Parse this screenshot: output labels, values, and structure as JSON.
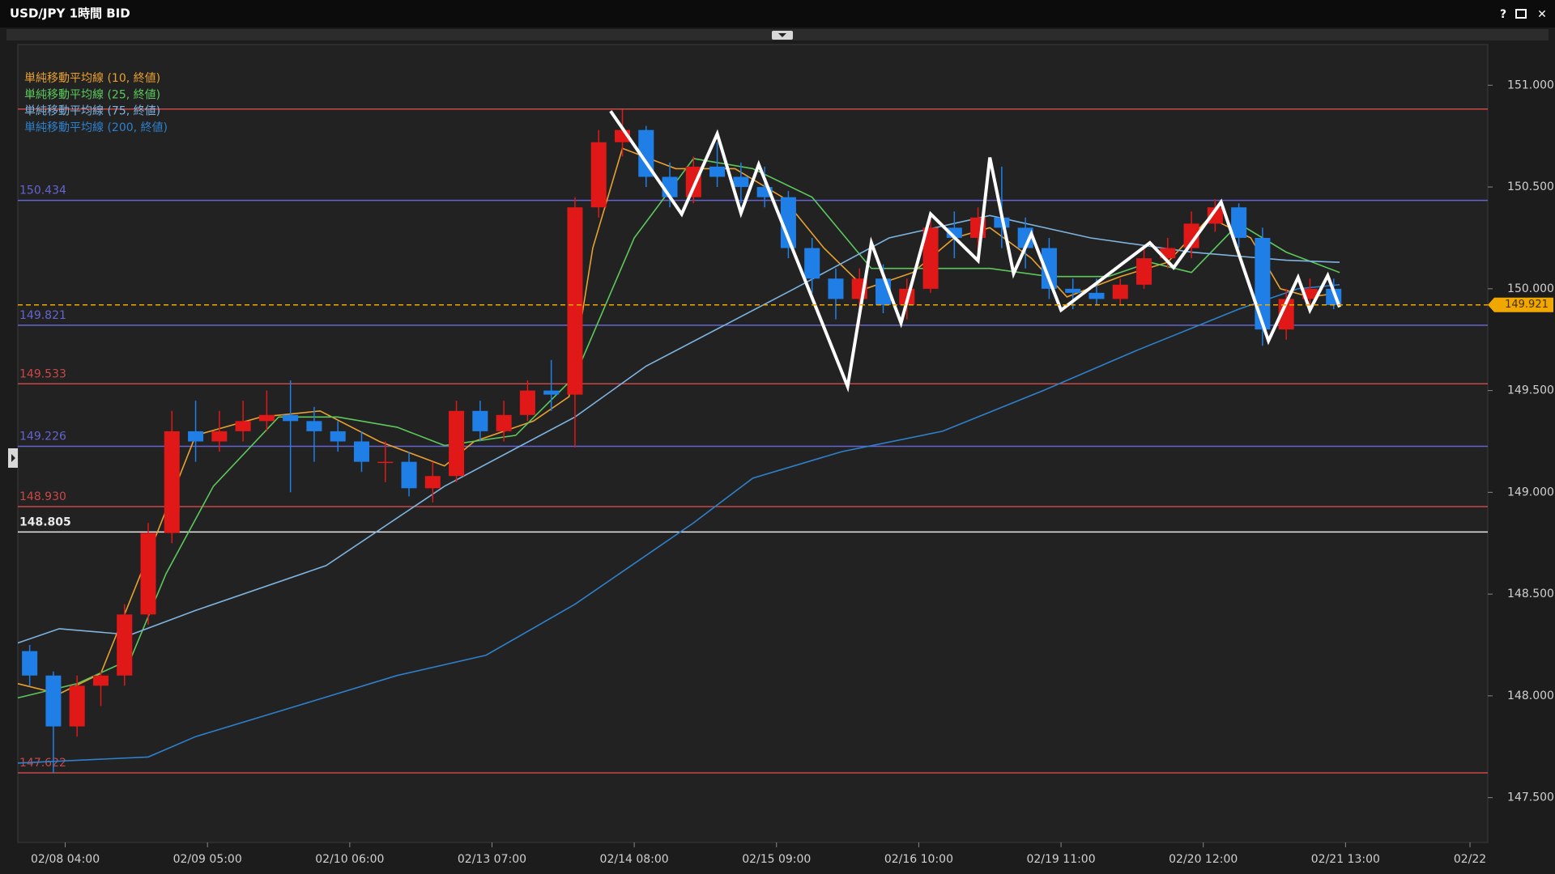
{
  "window": {
    "help": "?",
    "close": "✕"
  },
  "chart_data": {
    "type": "candlestick",
    "title": "USD/JPY 1時間 BID",
    "up_color": "#e01818",
    "down_color": "#1f7fe6",
    "xlim": [
      -8,
      240
    ],
    "ylim": [
      147.28,
      151.2
    ],
    "xticks": [
      {
        "value": 0,
        "label": "02/08 04:00"
      },
      {
        "value": 24,
        "label": "02/09 05:00"
      },
      {
        "value": 48,
        "label": "02/10 06:00"
      },
      {
        "value": 72,
        "label": "02/13 07:00"
      },
      {
        "value": 96,
        "label": "02/14 08:00"
      },
      {
        "value": 120,
        "label": "02/15 09:00"
      },
      {
        "value": 144,
        "label": "02/16 10:00"
      },
      {
        "value": 168,
        "label": "02/19 11:00"
      },
      {
        "value": 192,
        "label": "02/20 12:00"
      },
      {
        "value": 216,
        "label": "02/21 13:00"
      },
      {
        "value": 237,
        "label": "02/22"
      }
    ],
    "yticks": [
      {
        "value": 147.5,
        "label": "147.500"
      },
      {
        "value": 148,
        "label": "148.000"
      },
      {
        "value": 148.5,
        "label": "148.500"
      },
      {
        "value": 149,
        "label": "149.000"
      },
      {
        "value": 149.5,
        "label": "149.500"
      },
      {
        "value": 150,
        "label": "150.000"
      },
      {
        "value": 150.5,
        "label": "150.500"
      },
      {
        "value": 151,
        "label": "151.000"
      }
    ],
    "candles": {
      "x": [
        -6,
        -2,
        2,
        6,
        10,
        14,
        18,
        22,
        26,
        30,
        34,
        38,
        42,
        46,
        50,
        54,
        58,
        62,
        66,
        70,
        74,
        78,
        82,
        86,
        90,
        94,
        98,
        102,
        106,
        110,
        114,
        118,
        122,
        126,
        130,
        134,
        138,
        142,
        146,
        150,
        154,
        158,
        162,
        166,
        170,
        174,
        178,
        182,
        186,
        190,
        194,
        198,
        202,
        206,
        210,
        214
      ],
      "open": [
        148.22,
        148.1,
        147.85,
        148.05,
        148.1,
        148.4,
        148.8,
        149.3,
        149.25,
        149.3,
        149.35,
        149.38,
        149.35,
        149.3,
        149.25,
        149.15,
        149.15,
        149.02,
        149.08,
        149.4,
        149.3,
        149.38,
        149.5,
        149.48,
        150.4,
        150.72,
        150.78,
        150.55,
        150.45,
        150.6,
        150.55,
        150.5,
        150.45,
        150.2,
        150.05,
        149.95,
        150.05,
        149.92,
        150.0,
        150.3,
        150.25,
        150.35,
        150.3,
        150.2,
        150.0,
        149.98,
        149.95,
        150.02,
        150.15,
        150.2,
        150.32,
        150.4,
        150.25,
        149.8,
        149.95,
        150.0
      ],
      "high": [
        148.25,
        148.12,
        148.1,
        148.12,
        148.45,
        148.85,
        149.4,
        149.45,
        149.4,
        149.45,
        149.5,
        149.55,
        149.42,
        149.35,
        149.3,
        149.25,
        149.2,
        149.15,
        149.45,
        149.45,
        149.45,
        149.55,
        149.65,
        150.45,
        150.78,
        150.88,
        150.8,
        150.62,
        150.65,
        150.72,
        150.62,
        150.6,
        150.48,
        150.25,
        150.1,
        150.1,
        150.12,
        150.05,
        150.35,
        150.38,
        150.4,
        150.6,
        150.35,
        150.25,
        150.05,
        150.05,
        150.05,
        150.2,
        150.25,
        150.38,
        150.44,
        150.42,
        150.3,
        150.0,
        150.05,
        150.05
      ],
      "low": [
        148.05,
        147.62,
        147.8,
        147.95,
        148.05,
        148.35,
        148.75,
        149.15,
        149.2,
        149.25,
        149.3,
        149.0,
        149.15,
        149.2,
        149.1,
        149.05,
        148.98,
        148.95,
        149.05,
        149.25,
        149.25,
        149.35,
        149.4,
        149.22,
        150.35,
        150.65,
        150.5,
        150.4,
        150.42,
        150.5,
        150.42,
        150.4,
        150.15,
        149.98,
        149.85,
        149.82,
        149.88,
        149.85,
        149.98,
        150.15,
        150.18,
        150.2,
        150.1,
        149.95,
        149.9,
        149.92,
        149.92,
        150.0,
        150.1,
        150.15,
        150.28,
        150.2,
        149.72,
        149.75,
        149.88,
        149.9
      ],
      "close": [
        148.1,
        147.85,
        148.05,
        148.1,
        148.4,
        148.8,
        149.3,
        149.25,
        149.3,
        149.35,
        149.38,
        149.35,
        149.3,
        149.25,
        149.15,
        149.15,
        149.02,
        149.08,
        149.4,
        149.3,
        149.38,
        149.5,
        149.48,
        150.4,
        150.72,
        150.78,
        150.55,
        150.45,
        150.6,
        150.55,
        150.5,
        150.45,
        150.2,
        150.05,
        149.95,
        150.05,
        149.92,
        150.0,
        150.3,
        150.25,
        150.35,
        150.3,
        150.2,
        150.0,
        149.98,
        149.95,
        150.02,
        150.15,
        150.2,
        150.32,
        150.4,
        150.25,
        149.8,
        149.95,
        150.0,
        149.92
      ]
    },
    "series": [
      {
        "name": "単純移動平均線 (10, 終値)",
        "color": "#e8a030",
        "x": [
          -8,
          -1,
          6,
          14,
          22,
          33,
          43,
          53,
          64,
          69,
          79,
          85,
          89,
          94,
          103,
          113,
          121,
          128,
          135,
          143,
          150,
          156,
          163,
          169,
          178,
          186,
          193,
          200,
          205,
          210,
          215
        ],
        "values": [
          148.06,
          148.01,
          148.11,
          148.69,
          149.28,
          149.37,
          149.4,
          149.25,
          149.13,
          149.25,
          149.35,
          149.47,
          150.2,
          150.69,
          150.59,
          150.59,
          150.45,
          150.2,
          150.0,
          150.08,
          150.25,
          150.3,
          150.15,
          149.96,
          150.06,
          150.13,
          150.35,
          150.25,
          150.0,
          149.96,
          149.98
        ]
      },
      {
        "name": "単純移動平均線 (25, 終値)",
        "color": "#5cc85c",
        "x": [
          -8,
          2,
          11,
          17,
          25,
          36,
          46,
          56,
          64,
          76,
          86,
          96,
          106,
          116,
          126,
          136,
          147,
          156,
          166,
          176,
          183,
          190,
          198,
          206,
          215
        ],
        "values": [
          147.99,
          148.06,
          148.18,
          148.6,
          149.03,
          149.37,
          149.37,
          149.32,
          149.23,
          149.28,
          149.57,
          150.25,
          150.64,
          150.59,
          150.45,
          150.1,
          150.1,
          150.1,
          150.06,
          150.06,
          150.13,
          150.08,
          150.32,
          150.18,
          150.08
        ]
      },
      {
        "name": "単純移動平均線 (75, 終値)",
        "color": "#7db4e0",
        "x": [
          -8,
          -1,
          11,
          22,
          44,
          64,
          86,
          98,
          123,
          139,
          156,
          173,
          190,
          206,
          215
        ],
        "values": [
          148.26,
          148.33,
          148.3,
          148.42,
          148.64,
          149.03,
          149.37,
          149.62,
          150.0,
          150.25,
          150.36,
          150.25,
          150.18,
          150.14,
          150.13
        ]
      },
      {
        "name": "単純移動平均線 (200, 終値)",
        "color": "#2f80cc",
        "x": [
          -8,
          14,
          22,
          39,
          56,
          71,
          86,
          106,
          116,
          131,
          148,
          165,
          181,
          198,
          208,
          215
        ],
        "values": [
          147.67,
          147.7,
          147.8,
          147.95,
          148.1,
          148.2,
          148.45,
          148.85,
          149.07,
          149.2,
          149.3,
          149.5,
          149.7,
          149.9,
          150.0,
          150.02
        ]
      }
    ],
    "zigzag": {
      "color": "#ffffff",
      "x": [
        92,
        104,
        110,
        114,
        117,
        132,
        136,
        141,
        146,
        154,
        156,
        160,
        163,
        168,
        183,
        187,
        195,
        203,
        208,
        210,
        213,
        215
      ],
      "y": [
        150.873,
        150.367,
        150.761,
        150.372,
        150.611,
        149.52,
        150.226,
        149.832,
        150.367,
        150.138,
        150.645,
        150.075,
        150.27,
        149.895,
        150.226,
        150.104,
        150.426,
        149.744,
        150.056,
        149.895,
        150.065,
        149.91
      ]
    },
    "levels": [
      {
        "value": 150.883,
        "color": "#c84848"
      },
      {
        "value": 150.434,
        "label": "150.434",
        "color": "#6464d0"
      },
      {
        "value": 149.821,
        "label": "149.821",
        "color": "#6464d0"
      },
      {
        "value": 149.533,
        "label": "149.533",
        "color": "#c84848"
      },
      {
        "value": 149.226,
        "label": "149.226",
        "color": "#6464d0"
      },
      {
        "value": 148.93,
        "label": "148.930",
        "color": "#c84848"
      },
      {
        "value": 148.805,
        "label": "148.805",
        "color": "#e8e8e8"
      },
      {
        "value": 147.622,
        "label": "147.622",
        "color": "#c84848"
      }
    ],
    "current": {
      "value": 149.921,
      "label": "149.921",
      "color": "#f0a800"
    }
  }
}
